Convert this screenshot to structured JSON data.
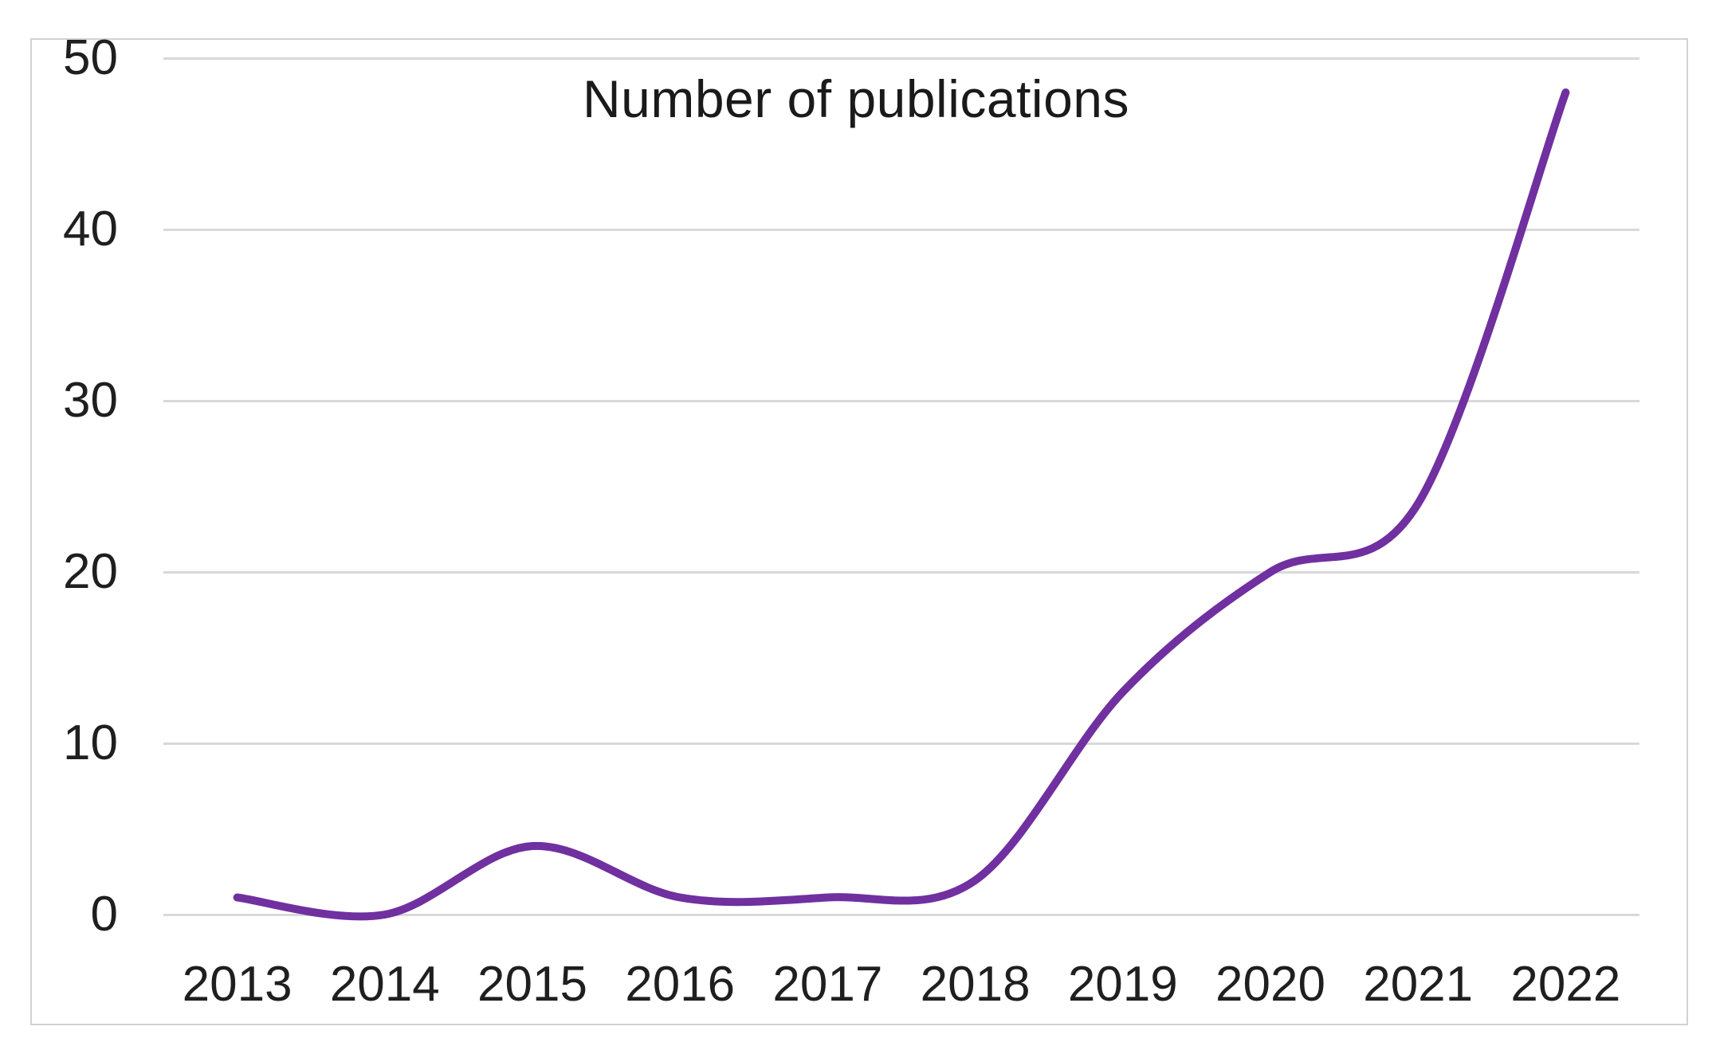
{
  "chart_data": {
    "type": "line",
    "title": "Number of publications",
    "categories": [
      "2013",
      "2014",
      "2015",
      "2016",
      "2017",
      "2018",
      "2019",
      "2020",
      "2021",
      "2022"
    ],
    "series": [
      {
        "name": "Number of publications",
        "values": [
          1,
          0,
          4,
          1,
          1,
          2,
          13,
          20,
          24,
          48
        ]
      }
    ],
    "xlabel": "",
    "ylabel": "",
    "ylim": [
      0,
      50
    ],
    "yticks": [
      0,
      10,
      20,
      30,
      40,
      50
    ],
    "grid": true,
    "legend_position": "none",
    "smooth": true,
    "line_color": "#7030A0",
    "gridline_color": "#d9d9d9",
    "frame_color": "#d2d2d2",
    "text_color": "#1f1f1f"
  }
}
